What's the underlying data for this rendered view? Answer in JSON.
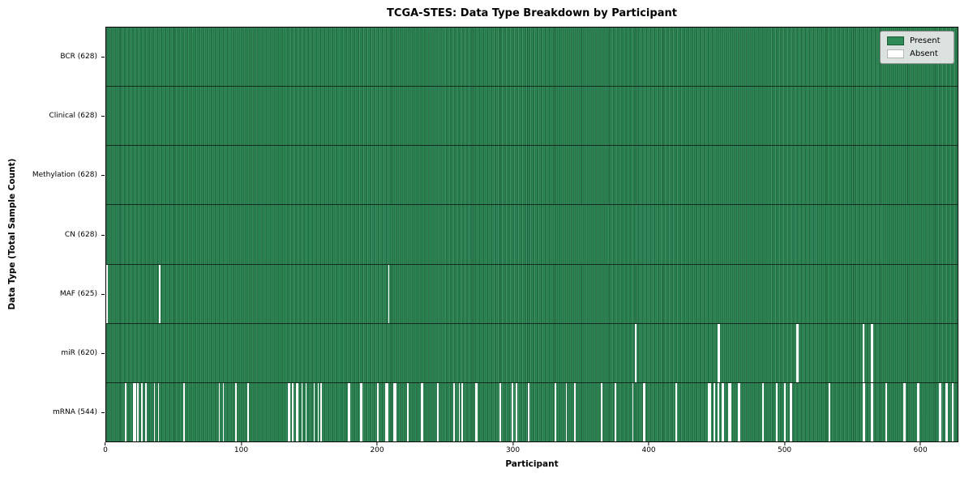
{
  "chart": {
    "title": "TCGA-STES: Data Type Breakdown by Participant",
    "xlabel": "Participant",
    "ylabel": "Data Type (Total Sample Count)",
    "legend_labels": {
      "present": "Present",
      "absent": "Absent"
    }
  },
  "chart_data": {
    "type": "heatmap",
    "title": "TCGA-STES: Data Type Breakdown by Participant",
    "xlabel": "Participant",
    "ylabel": "Data Type (Total Sample Count)",
    "n_participants": 628,
    "x_range": [
      0,
      628
    ],
    "xticks": [
      0,
      100,
      200,
      300,
      400,
      500,
      600
    ],
    "legend": [
      "Present",
      "Absent"
    ],
    "legend_position": "upper right",
    "colors": {
      "present": "#2e8b57",
      "absent": "#ffffff"
    },
    "rows": [
      {
        "data_type": "BCR",
        "label": "BCR (628)",
        "present_count": 628,
        "absent_count": 0,
        "absent_participants": []
      },
      {
        "data_type": "Clinical",
        "label": "Clinical (628)",
        "present_count": 628,
        "absent_count": 0,
        "absent_participants": []
      },
      {
        "data_type": "Methylation",
        "label": "Methylation (628)",
        "present_count": 628,
        "absent_count": 0,
        "absent_participants": []
      },
      {
        "data_type": "CN",
        "label": "CN (628)",
        "present_count": 628,
        "absent_count": 0,
        "absent_participants": []
      },
      {
        "data_type": "MAF",
        "label": "MAF (625)",
        "present_count": 625,
        "absent_count": 3,
        "absent_participants": [
          0,
          39,
          208
        ]
      },
      {
        "data_type": "miR",
        "label": "miR (620)",
        "present_count": 620,
        "absent_count": 8,
        "absent_participants": [
          390,
          451,
          452,
          509,
          510,
          558,
          564,
          565
        ]
      },
      {
        "data_type": "mRNA",
        "label": "mRNA (544)",
        "present_count": 544,
        "absent_count": 84,
        "absent_participants": [
          14,
          20,
          21,
          23,
          26,
          29,
          35,
          38,
          57,
          83,
          86,
          95,
          104,
          134,
          135,
          137,
          140,
          141,
          144,
          147,
          153,
          156,
          158,
          178,
          179,
          187,
          188,
          200,
          206,
          207,
          212,
          213,
          222,
          232,
          233,
          244,
          256,
          260,
          262,
          272,
          273,
          290,
          299,
          302,
          311,
          331,
          339,
          345,
          365,
          375,
          388,
          396,
          397,
          420,
          444,
          445,
          448,
          451,
          454,
          455,
          459,
          460,
          466,
          467,
          484,
          494,
          500,
          504,
          505,
          533,
          558,
          559,
          564,
          565,
          575,
          588,
          589,
          598,
          599,
          614,
          615,
          619,
          620,
          624
        ]
      }
    ]
  }
}
